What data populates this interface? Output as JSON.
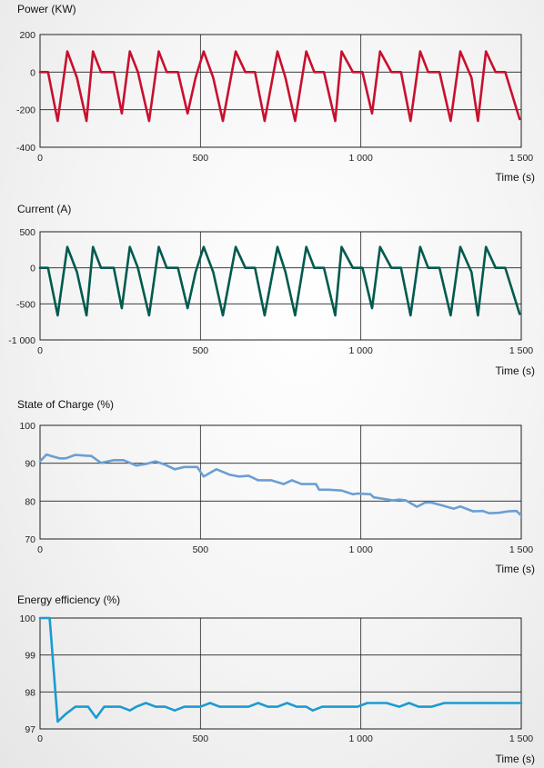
{
  "chart_data": [
    {
      "type": "line",
      "title": "Power (KW)",
      "xlabel": "Time (s)",
      "ylabel": "",
      "xlim": [
        0,
        1500
      ],
      "ylim": [
        -400,
        200
      ],
      "x_ticks": [
        0,
        500,
        1000,
        1500
      ],
      "x_tick_labels": [
        "0",
        "500",
        "1 000",
        "1 500"
      ],
      "y_ticks": [
        200,
        0,
        -200,
        -400
      ],
      "y_tick_labels": [
        "200",
        "0",
        "-200",
        "-400"
      ],
      "grid": true,
      "color": "#c8102e",
      "series": [
        {
          "x": [
            0,
            25,
            55,
            85,
            115,
            145,
            165,
            190,
            230,
            255,
            280,
            305,
            340,
            370,
            395,
            430,
            460,
            485,
            510,
            540,
            570,
            610,
            640,
            670,
            700,
            740,
            765,
            795,
            830,
            855,
            885,
            920,
            940,
            975,
            1005,
            1035,
            1060,
            1095,
            1125,
            1155,
            1185,
            1210,
            1245,
            1280,
            1310,
            1345,
            1365,
            1390,
            1420,
            1450,
            1495
          ],
          "y": [
            0,
            0,
            -260,
            110,
            -30,
            -260,
            110,
            0,
            0,
            -220,
            110,
            0,
            -260,
            110,
            0,
            0,
            -220,
            -30,
            110,
            -30,
            -260,
            110,
            0,
            0,
            -260,
            110,
            -30,
            -260,
            110,
            0,
            0,
            -260,
            110,
            0,
            0,
            -220,
            110,
            0,
            0,
            -260,
            110,
            0,
            0,
            -260,
            110,
            -30,
            -260,
            110,
            0,
            0,
            -250
          ]
        }
      ]
    },
    {
      "type": "line",
      "title": "Current (A)",
      "xlabel": "Time (s)",
      "ylabel": "",
      "xlim": [
        0,
        1500
      ],
      "ylim": [
        -1000,
        500
      ],
      "x_ticks": [
        0,
        500,
        1000,
        1500
      ],
      "x_tick_labels": [
        "0",
        "500",
        "1 000",
        "1 500"
      ],
      "y_ticks": [
        500,
        0,
        -500,
        -1000
      ],
      "y_tick_labels": [
        "500",
        "0",
        "-500",
        "-1 000"
      ],
      "grid": true,
      "color": "#005a4e",
      "series": [
        {
          "x": [
            0,
            25,
            55,
            85,
            115,
            145,
            165,
            190,
            230,
            255,
            280,
            305,
            340,
            370,
            395,
            430,
            460,
            485,
            510,
            540,
            570,
            610,
            640,
            670,
            700,
            740,
            765,
            795,
            830,
            855,
            885,
            920,
            940,
            975,
            1005,
            1035,
            1060,
            1095,
            1125,
            1155,
            1185,
            1210,
            1245,
            1280,
            1310,
            1345,
            1365,
            1390,
            1420,
            1450,
            1495
          ],
          "y": [
            0,
            0,
            -660,
            290,
            -60,
            -660,
            290,
            0,
            0,
            -560,
            290,
            0,
            -660,
            290,
            0,
            0,
            -560,
            -60,
            290,
            -60,
            -660,
            290,
            0,
            0,
            -660,
            290,
            -60,
            -660,
            290,
            0,
            0,
            -660,
            290,
            0,
            0,
            -560,
            290,
            0,
            0,
            -660,
            290,
            0,
            0,
            -660,
            290,
            -60,
            -660,
            290,
            0,
            0,
            -640
          ]
        }
      ]
    },
    {
      "type": "line",
      "title": "State of Charge (%)",
      "xlabel": "Time (s)",
      "ylabel": "",
      "xlim": [
        0,
        1500
      ],
      "ylim": [
        70,
        100
      ],
      "x_ticks": [
        0,
        500,
        1000,
        1500
      ],
      "x_tick_labels": [
        "0",
        "500",
        "1 000",
        "1 500"
      ],
      "y_ticks": [
        100,
        90,
        80,
        70
      ],
      "y_tick_labels": [
        "100",
        "90",
        "80",
        "70"
      ],
      "grid": true,
      "color": "#6a9fd2",
      "series": [
        {
          "x": [
            0,
            20,
            40,
            60,
            80,
            110,
            140,
            160,
            190,
            230,
            260,
            300,
            330,
            360,
            390,
            420,
            450,
            490,
            510,
            550,
            590,
            620,
            650,
            680,
            720,
            760,
            785,
            815,
            830,
            860,
            870,
            900,
            940,
            975,
            990,
            1030,
            1040,
            1070,
            1100,
            1120,
            1140,
            1175,
            1200,
            1220,
            1255,
            1290,
            1310,
            1350,
            1380,
            1400,
            1430,
            1460,
            1485,
            1500
          ],
          "y": [
            90.5,
            92.3,
            91.8,
            91.3,
            91.3,
            92.2,
            92.0,
            91.9,
            90.1,
            90.8,
            90.8,
            89.4,
            89.8,
            90.5,
            89.6,
            88.4,
            89.0,
            89.0,
            86.5,
            88.4,
            87.0,
            86.5,
            86.7,
            85.5,
            85.5,
            84.5,
            85.5,
            84.5,
            84.5,
            84.5,
            83.0,
            83.0,
            82.8,
            81.8,
            82.0,
            81.8,
            81.0,
            80.6,
            80.2,
            80.4,
            80.2,
            78.5,
            79.6,
            79.6,
            78.8,
            78.0,
            78.6,
            77.3,
            77.4,
            76.8,
            76.9,
            77.3,
            77.4,
            76.2
          ]
        }
      ]
    },
    {
      "type": "line",
      "title": "Energy efficiency (%)",
      "xlabel": "Time (s)",
      "ylabel": "",
      "xlim": [
        0,
        1500
      ],
      "ylim": [
        97,
        100
      ],
      "x_ticks": [
        0,
        500,
        1000,
        1500
      ],
      "x_tick_labels": [
        "0",
        "500",
        "1 000",
        "1 500"
      ],
      "y_ticks": [
        100,
        99,
        98,
        97
      ],
      "y_tick_labels": [
        "100",
        "99",
        "98",
        "97"
      ],
      "grid": true,
      "color": "#1b9bd1",
      "series": [
        {
          "x": [
            0,
            30,
            55,
            80,
            110,
            130,
            150,
            175,
            200,
            230,
            250,
            280,
            300,
            330,
            360,
            390,
            420,
            450,
            480,
            500,
            530,
            560,
            590,
            620,
            650,
            680,
            710,
            740,
            770,
            800,
            830,
            850,
            880,
            910,
            950,
            990,
            1020,
            1060,
            1080,
            1120,
            1150,
            1180,
            1220,
            1260,
            1300,
            1340,
            1380,
            1420,
            1460,
            1500
          ],
          "y": [
            100,
            100,
            97.2,
            97.4,
            97.6,
            97.6,
            97.6,
            97.3,
            97.6,
            97.6,
            97.6,
            97.5,
            97.6,
            97.7,
            97.6,
            97.6,
            97.5,
            97.6,
            97.6,
            97.6,
            97.7,
            97.6,
            97.6,
            97.6,
            97.6,
            97.7,
            97.6,
            97.6,
            97.7,
            97.6,
            97.6,
            97.5,
            97.6,
            97.6,
            97.6,
            97.6,
            97.7,
            97.7,
            97.7,
            97.6,
            97.7,
            97.6,
            97.6,
            97.7,
            97.7,
            97.7,
            97.7,
            97.7,
            97.7,
            97.7
          ]
        }
      ]
    }
  ]
}
